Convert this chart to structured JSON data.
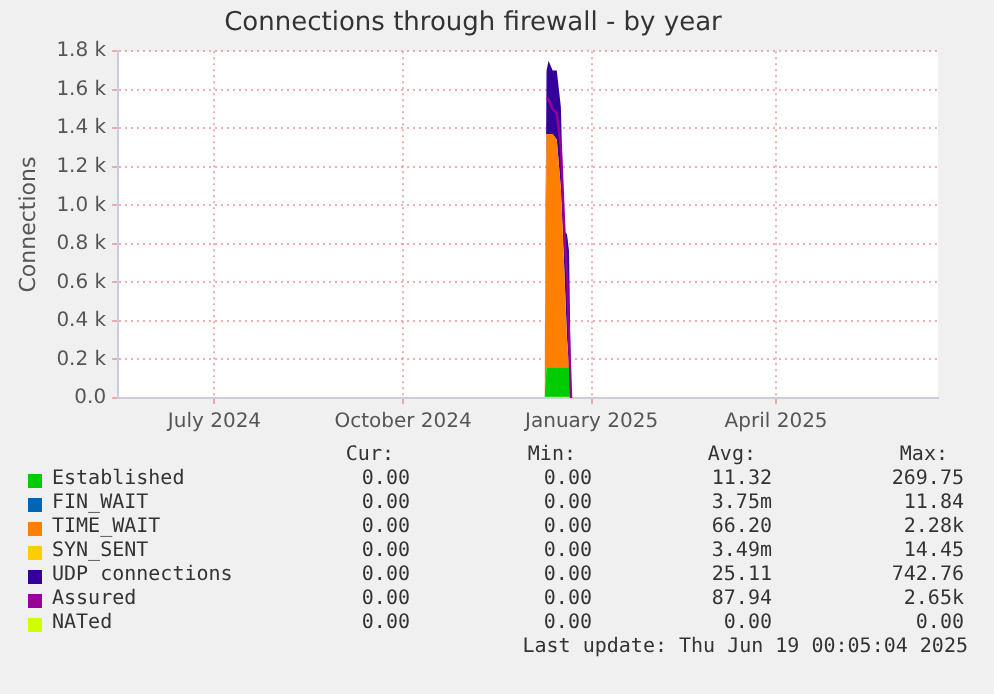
{
  "chart_data": {
    "type": "area",
    "title": "Connections through firewall - by year",
    "ylabel": "Connections",
    "stacked": true,
    "grid": true,
    "legend": "bottom",
    "marker": "none",
    "x": [
      "2024-12-09",
      "2024-12-10",
      "2024-12-11",
      "2024-12-13",
      "2024-12-15",
      "2024-12-17",
      "2024-12-18",
      "2024-12-19",
      "2024-12-20",
      "2024-12-21",
      "2024-12-22"
    ],
    "xlim": [
      "2024-05-15",
      "2025-06-19"
    ],
    "xticks": [
      {
        "value": "2024-07-01",
        "label": "July 2024"
      },
      {
        "value": "2024-10-01",
        "label": "October 2024"
      },
      {
        "value": "2025-01-01",
        "label": "January 2025"
      },
      {
        "value": "2025-04-01",
        "label": "April 2025"
      }
    ],
    "ylim": [
      0,
      1800
    ],
    "yticks": [
      {
        "value": 0,
        "label": "0.0"
      },
      {
        "value": 200,
        "label": "0.2 k"
      },
      {
        "value": 400,
        "label": "0.4 k"
      },
      {
        "value": 600,
        "label": "0.6 k"
      },
      {
        "value": 800,
        "label": "0.8 k"
      },
      {
        "value": 1000,
        "label": "1.0 k"
      },
      {
        "value": 1200,
        "label": "1.2 k"
      },
      {
        "value": 1400,
        "label": "1.4 k"
      },
      {
        "value": 1600,
        "label": "1.6 k"
      },
      {
        "value": 1800,
        "label": "1.8 k"
      }
    ],
    "series": [
      {
        "name": "Established",
        "color": "#00cc00",
        "values": [
          0,
          160,
          160,
          160,
          160,
          160,
          160,
          160,
          160,
          160,
          0
        ]
      },
      {
        "name": "FIN_WAIT",
        "color": "#0066b3",
        "values": [
          null,
          null,
          null,
          null,
          null,
          null,
          null,
          null,
          null,
          null,
          null
        ]
      },
      {
        "name": "TIME_WAIT",
        "color": "#ff8000",
        "values": [
          0,
          1210,
          1210,
          1210,
          1180,
          930,
          690,
          420,
          150,
          0,
          0
        ]
      },
      {
        "name": "SYN_SENT",
        "color": "#ffcc00",
        "values": [
          null,
          null,
          null,
          null,
          null,
          null,
          null,
          null,
          null,
          null,
          null
        ]
      },
      {
        "name": "UDP connections",
        "color": "#330099",
        "values": [
          0,
          330,
          380,
          330,
          360,
          420,
          250,
          280,
          540,
          600,
          0
        ]
      },
      {
        "name": "Assured",
        "color": "#990099",
        "type": "line",
        "values": [
          null,
          1560,
          1550,
          1500,
          1480,
          1300,
          1050,
          800,
          650,
          300,
          0
        ]
      },
      {
        "name": "NATed",
        "color": "#ccff00",
        "type": "line",
        "values": [
          0,
          0,
          0,
          0,
          0,
          0,
          0,
          0,
          0,
          0,
          0
        ]
      }
    ],
    "annotations": [
      "Cur:",
      "Min:",
      "Avg:",
      "Max:",
      "0.00",
      "0.00",
      "11.32",
      "269.75",
      "0.00",
      "0.00",
      "3.75m",
      "11.84",
      "0.00",
      "0.00",
      "66.20",
      "2.28k",
      "0.00",
      "0.00",
      "3.49m",
      "14.45",
      "0.00",
      "0.00",
      "25.11",
      "742.76",
      "0.00",
      "0.00",
      "87.94",
      "2.65k",
      "0.00",
      "0.00",
      "0.00",
      "0.00",
      "Last update: Thu Jun 19 00:05:04 2025"
    ]
  }
}
